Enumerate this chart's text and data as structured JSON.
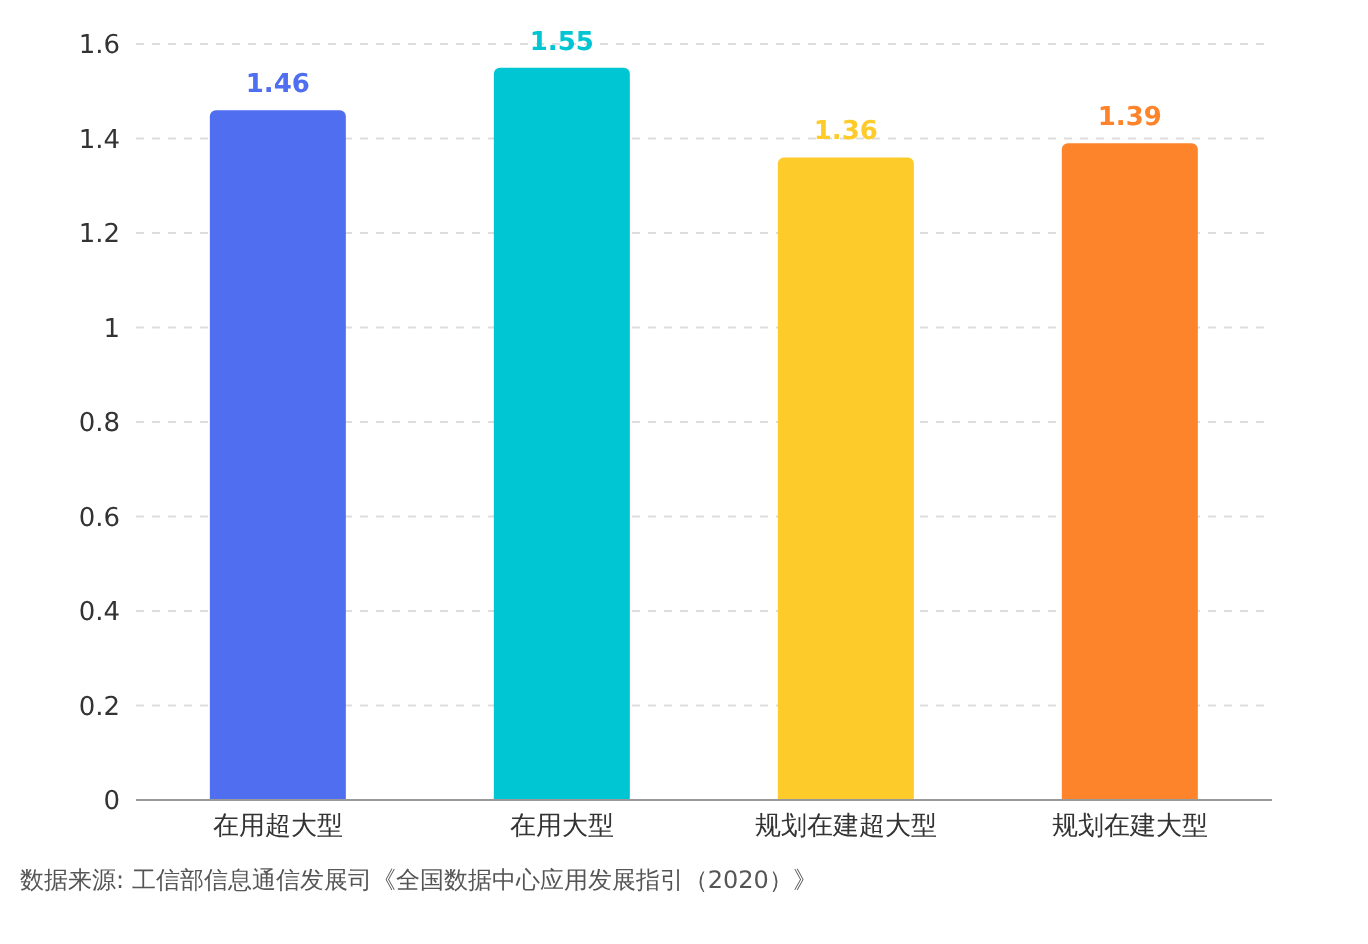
{
  "chart_data": {
    "type": "bar",
    "categories": [
      "在用超大型",
      "在用大型",
      "规划在建超大型",
      "规划在建大型"
    ],
    "values": [
      1.46,
      1.55,
      1.36,
      1.39
    ],
    "colors": [
      "#4f6ef0",
      "#00c5d2",
      "#fdcb2a",
      "#fd842b"
    ],
    "ylim": [
      0,
      1.6
    ],
    "yticks": [
      0,
      0.2,
      0.4,
      0.6,
      0.8,
      1,
      1.2,
      1.4,
      1.6
    ],
    "grid": "y",
    "data_labels": true,
    "annotations": [
      "数据来源: 工信部信息通信发展司《全国数据中心应用发展指引（2020）》"
    ]
  }
}
